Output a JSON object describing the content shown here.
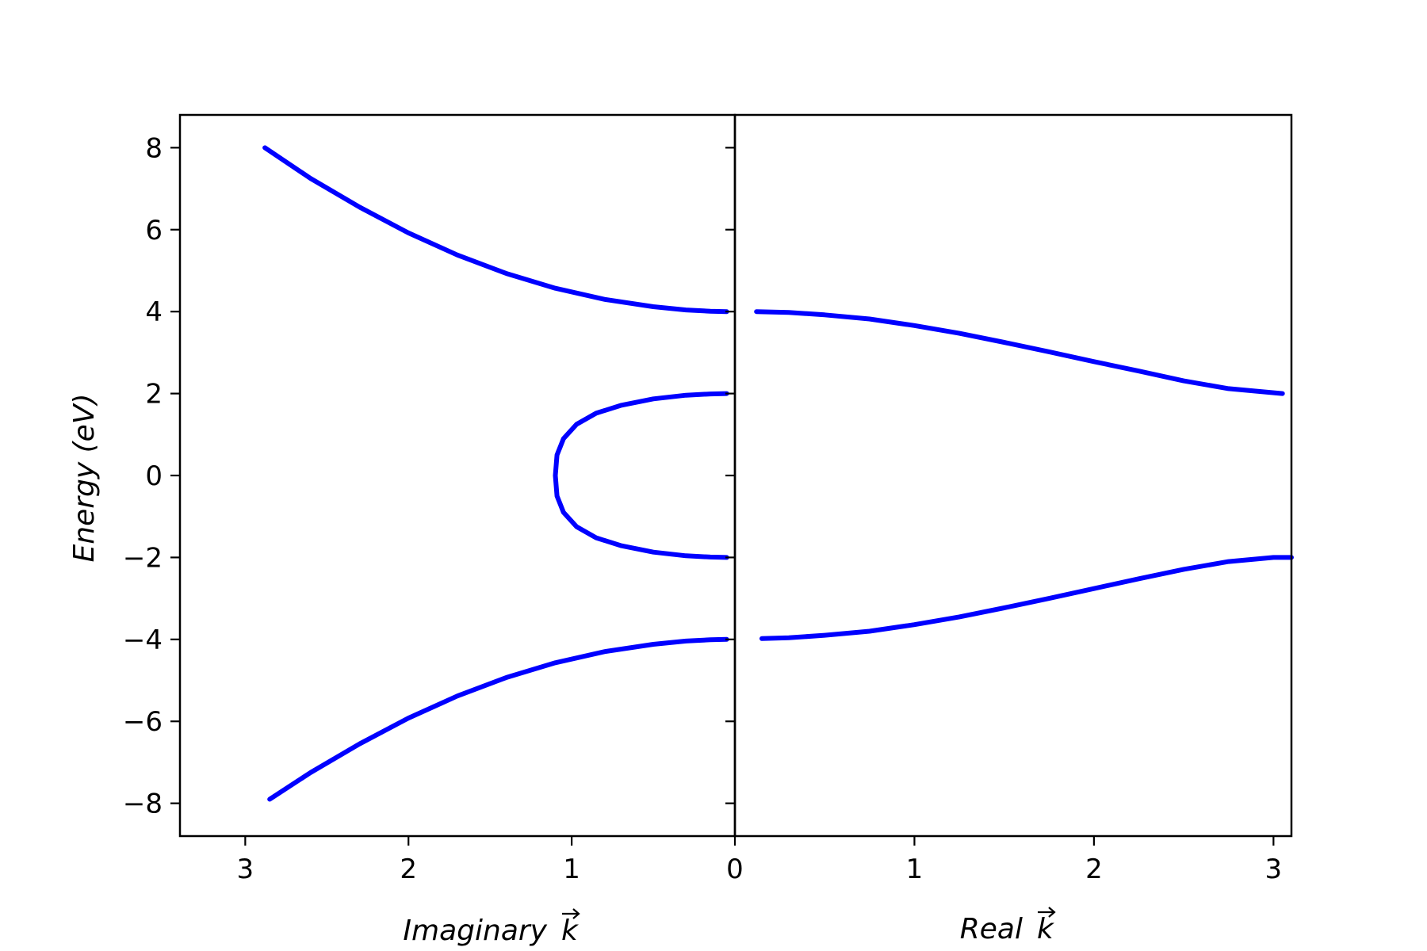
{
  "chart_data": [
    {
      "panel": "left",
      "type": "line",
      "xlabel": "Imaginary",
      "xlabel_symbol": "k",
      "ylabel": "Energy  (eV)",
      "xlim": [
        3.4,
        0
      ],
      "ylim": [
        -8.8,
        8.8
      ],
      "xticks": [
        3,
        2,
        1
      ],
      "yticks": [
        8,
        6,
        4,
        2,
        0,
        -2,
        -4,
        -6,
        -8
      ],
      "ytick_labels": [
        "8",
        "6",
        "4",
        "2",
        "0",
        "−2",
        "−4",
        "−6",
        "−8"
      ],
      "color": "#0000ff",
      "series": [
        {
          "x": [
            2.88,
            2.6,
            2.3,
            2.0,
            1.7,
            1.4,
            1.1,
            0.8,
            0.5,
            0.3,
            0.15,
            0.05
          ],
          "y": [
            8.0,
            7.25,
            6.55,
            5.92,
            5.38,
            4.93,
            4.57,
            4.3,
            4.12,
            4.04,
            4.01,
            4.0
          ]
        },
        {
          "x": [
            0.05,
            0.15,
            0.3,
            0.5,
            0.7,
            0.85,
            0.97,
            1.05,
            1.09,
            1.1,
            1.09,
            1.05,
            0.97,
            0.85,
            0.7,
            0.5,
            0.3,
            0.15,
            0.05
          ],
          "y": [
            2.0,
            1.99,
            1.96,
            1.87,
            1.71,
            1.52,
            1.25,
            0.9,
            0.5,
            0.0,
            -0.5,
            -0.9,
            -1.25,
            -1.52,
            -1.71,
            -1.87,
            -1.96,
            -1.99,
            -2.0
          ]
        },
        {
          "x": [
            2.85,
            2.6,
            2.3,
            2.0,
            1.7,
            1.4,
            1.1,
            0.8,
            0.5,
            0.3,
            0.15,
            0.05
          ],
          "y": [
            -7.9,
            -7.25,
            -6.55,
            -5.92,
            -5.38,
            -4.93,
            -4.57,
            -4.3,
            -4.12,
            -4.04,
            -4.01,
            -4.0
          ]
        }
      ]
    },
    {
      "panel": "right",
      "type": "line",
      "xlabel": "Real",
      "xlabel_symbol": "k",
      "xlim": [
        0,
        3.1
      ],
      "ylim": [
        -8.8,
        8.8
      ],
      "xticks": [
        0,
        1,
        2,
        3
      ],
      "color": "#0000ff",
      "series": [
        {
          "x": [
            0.12,
            0.3,
            0.5,
            0.75,
            1.0,
            1.25,
            1.5,
            1.75,
            2.0,
            2.25,
            2.5,
            2.75,
            3.05
          ],
          "y": [
            4.0,
            3.98,
            3.92,
            3.82,
            3.66,
            3.47,
            3.25,
            3.02,
            2.78,
            2.55,
            2.31,
            2.12,
            2.0
          ]
        },
        {
          "x": [
            0.15,
            0.3,
            0.5,
            0.75,
            1.0,
            1.25,
            1.5,
            1.75,
            2.0,
            2.25,
            2.5,
            2.75,
            3.0,
            3.1
          ],
          "y": [
            -3.98,
            -3.96,
            -3.9,
            -3.8,
            -3.64,
            -3.45,
            -3.23,
            -3.0,
            -2.76,
            -2.52,
            -2.29,
            -2.1,
            -2.0,
            -2.0
          ]
        }
      ]
    }
  ]
}
